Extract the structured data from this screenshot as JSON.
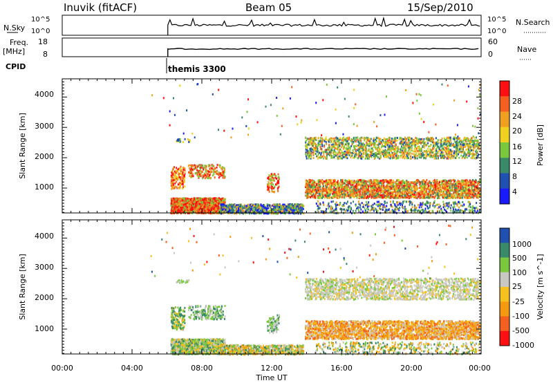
{
  "header": {
    "station": "Inuvik (fitACF)",
    "beam": "Beam 05",
    "date": "15/Sep/2010"
  },
  "top_panel": {
    "left_label": "N.Sky",
    "right_label": "N.Search",
    "left_ticks": [
      "10^5",
      "10^0"
    ],
    "right_ticks": [
      "10^5",
      "10^0"
    ]
  },
  "freq_panel": {
    "left_label_1": "Freq.",
    "left_label_2": "[MHz]",
    "right_label": "Nave",
    "left_ticks": [
      "18",
      "8"
    ],
    "right_ticks": [
      "60",
      "0"
    ]
  },
  "cpid": {
    "label": "CPID",
    "program": "themis 3300"
  },
  "colors": {
    "power_scale": [
      "#1a1aff",
      "#2050b0",
      "#3a8a6a",
      "#7ac83e",
      "#f0d020",
      "#f0a020",
      "#f56020",
      "#ff1010"
    ],
    "velocity_scale": [
      "#ff1010",
      "#f56020",
      "#f59a10",
      "#f5c020",
      "#c8c8c0",
      "#7ac83e",
      "#3a8a6a",
      "#2050b0"
    ]
  },
  "chart_data": [
    {
      "type": "heatmap",
      "title": "",
      "xlabel": "",
      "ylabel": "Slant Range [km]",
      "xlim": [
        0,
        24
      ],
      "ylim": [
        180,
        4600
      ],
      "x_tick_labels": [
        "00:00",
        "04:00",
        "08:00",
        "12:00",
        "16:00",
        "20:00",
        "00:00"
      ],
      "y_ticks": [
        1000,
        2000,
        3000,
        4000
      ],
      "y_tick_labels": [
        "1000",
        "2000",
        "3000",
        "4000"
      ],
      "colorbar_label": "Power [dB]",
      "colorbar_ticks": [
        "4",
        "8",
        "12",
        "16",
        "20",
        "24",
        "28"
      ]
    },
    {
      "type": "heatmap",
      "title": "",
      "xlabel": "Time UT",
      "ylabel": "Slant Range [km]",
      "xlim": [
        0,
        24
      ],
      "ylim": [
        180,
        4600
      ],
      "x_tick_labels": [
        "00:00",
        "04:00",
        "08:00",
        "12:00",
        "16:00",
        "20:00",
        "00:00"
      ],
      "y_ticks": [
        1000,
        2000,
        3000,
        4000
      ],
      "y_tick_labels": [
        "1000",
        "2000",
        "3000",
        "4000"
      ],
      "colorbar_label": "Velocity [m s^-1]",
      "colorbar_ticks": [
        "1000",
        "500",
        "100",
        "25",
        "-25",
        "-100",
        "-500",
        "-1000"
      ]
    }
  ]
}
